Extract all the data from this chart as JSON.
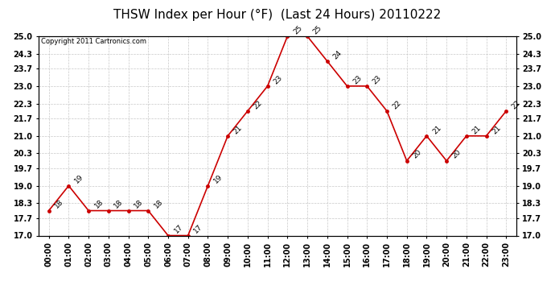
{
  "title": "THSW Index per Hour (°F)  (Last 24 Hours) 20110222",
  "copyright": "Copyright 2011 Cartronics.com",
  "hours": [
    "00:00",
    "01:00",
    "02:00",
    "03:00",
    "04:00",
    "05:00",
    "06:00",
    "07:00",
    "08:00",
    "09:00",
    "10:00",
    "11:00",
    "12:00",
    "13:00",
    "14:00",
    "15:00",
    "16:00",
    "17:00",
    "18:00",
    "19:00",
    "20:00",
    "21:00",
    "22:00",
    "23:00"
  ],
  "values": [
    18,
    19,
    18,
    18,
    18,
    18,
    17,
    17,
    19,
    21,
    22,
    23,
    25,
    25,
    24,
    23,
    23,
    22,
    20,
    21,
    20,
    21,
    21,
    22
  ],
  "line_color": "#cc0000",
  "marker_color": "#cc0000",
  "grid_color": "#c8c8c8",
  "bg_color": "#ffffff",
  "ylim_min": 17.0,
  "ylim_max": 25.0,
  "yticks": [
    17.0,
    17.7,
    18.3,
    19.0,
    19.7,
    20.3,
    21.0,
    21.7,
    22.3,
    23.0,
    23.7,
    24.3,
    25.0
  ],
  "title_fontsize": 11,
  "copyright_fontsize": 6,
  "label_fontsize": 6.5,
  "tick_fontsize": 7
}
